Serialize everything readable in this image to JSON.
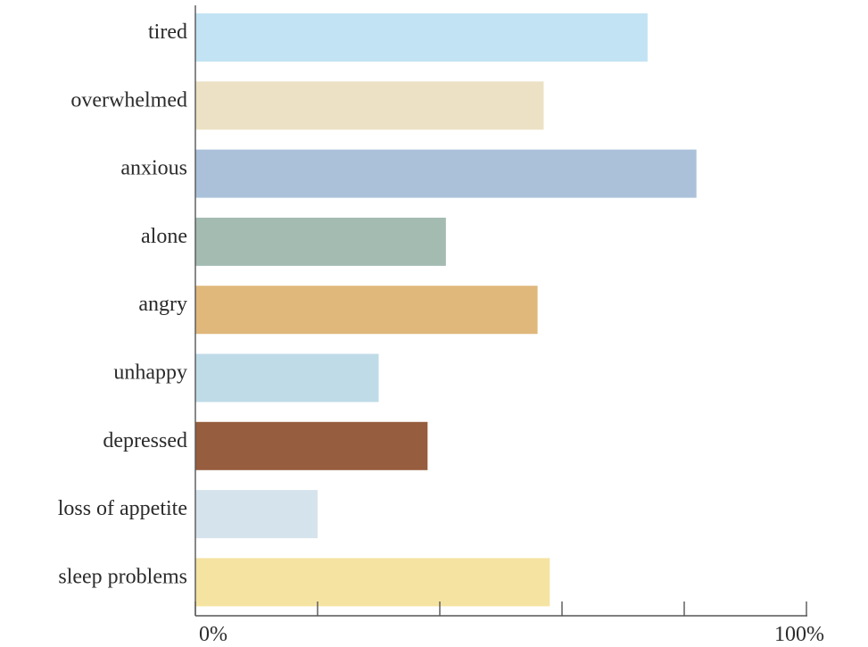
{
  "chart_data": {
    "type": "bar",
    "orientation": "horizontal",
    "categories": [
      "tired",
      "overwhelmed",
      "anxious",
      "alone",
      "angry",
      "unhappy",
      "depressed",
      "loss of appetite",
      "sleep problems"
    ],
    "values": [
      74,
      57,
      82,
      41,
      56,
      30,
      38,
      20,
      58
    ],
    "colors": [
      "#c2e3f3",
      "#ece1c4",
      "#abc1da",
      "#a4bbb2",
      "#e0b87c",
      "#bfdbe8",
      "#965d3e",
      "#d5e3ec",
      "#f5e3a2"
    ],
    "xlim": [
      0,
      100
    ],
    "x_ticks": [
      0,
      20,
      40,
      60,
      80,
      100
    ],
    "x_tick_labels": {
      "0": "0%",
      "100": "100%"
    },
    "title": "",
    "xlabel": "",
    "ylabel": "",
    "grid": false,
    "legend": "none"
  }
}
